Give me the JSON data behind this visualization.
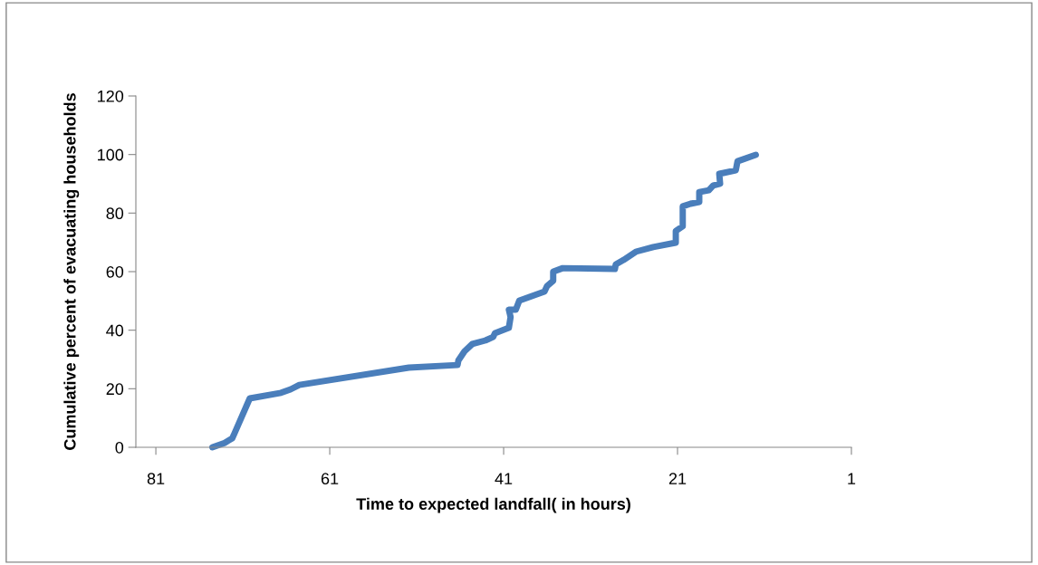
{
  "chart_data": {
    "type": "line",
    "xlabel": "Time to expected landfall( in hours)",
    "ylabel": "Cumulative percent of evacuating households",
    "x": [
      74.5,
      73.1,
      72.2,
      70.2,
      66.6,
      65.5,
      64.5,
      51.9,
      46.3,
      46.2,
      45.5,
      44.6,
      43.1,
      42.2,
      42.0,
      40.4,
      40.2,
      40.4,
      39.6,
      39.2,
      36.3,
      36.0,
      35.3,
      35.3,
      34.2,
      28.2,
      28.1,
      27.2,
      25.8,
      23.8,
      21.2,
      21.2,
      20.4,
      20.4,
      20.4,
      19.5,
      18.5,
      18.5,
      17.4,
      16.9,
      16.1,
      16.2,
      14.3,
      14.1,
      12.0
    ],
    "series": [
      {
        "color": "#4a7ebb",
        "values": [
          0,
          1.5,
          3.1,
          16.7,
          18.6,
          19.8,
          21.3,
          27.2,
          28.1,
          29.7,
          32.8,
          35.3,
          36.5,
          37.7,
          39.0,
          40.8,
          44.5,
          47.0,
          47.0,
          50.1,
          53.2,
          55.1,
          56.9,
          60.0,
          61.2,
          60.9,
          62.5,
          64.0,
          66.8,
          68.4,
          69.9,
          73.9,
          75.5,
          78.6,
          82.3,
          83.2,
          83.8,
          87.2,
          87.8,
          89.4,
          90.0,
          93.4,
          94.6,
          97.7,
          99.9
        ]
      }
    ],
    "xlim": [
      83.3,
      1
    ],
    "xticks": [
      81,
      61,
      41,
      21,
      1
    ],
    "ylim": [
      0,
      120
    ],
    "yticks": [
      0,
      20,
      40,
      60,
      80,
      100,
      120
    ],
    "grid": false,
    "legend": false,
    "marker": "none",
    "line_style": "solid"
  }
}
